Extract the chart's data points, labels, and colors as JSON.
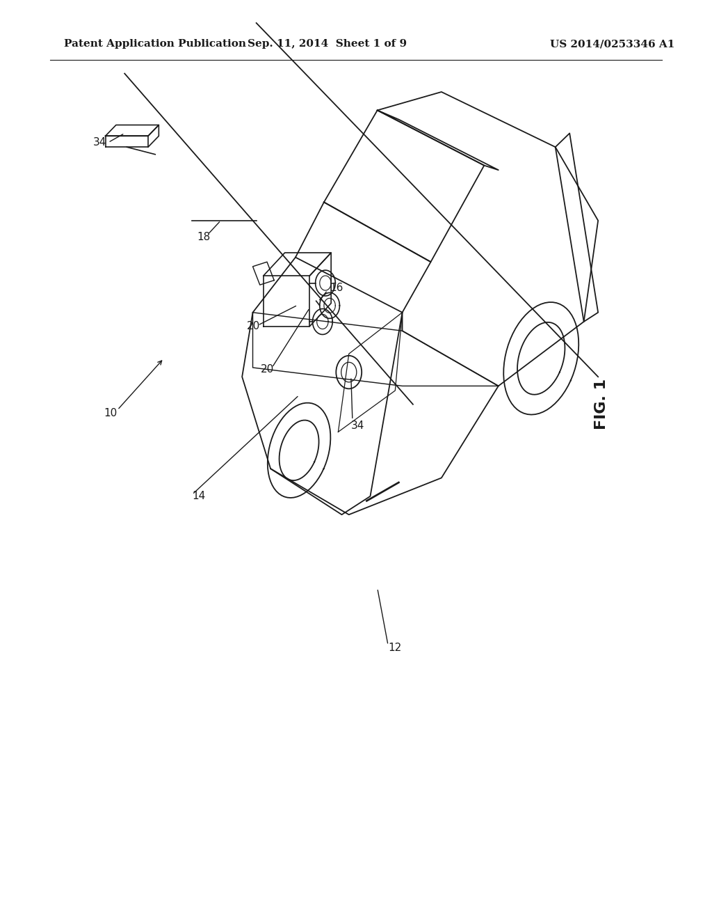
{
  "header_left": "Patent Application Publication",
  "header_center": "Sep. 11, 2014  Sheet 1 of 9",
  "header_right": "US 2014/0253346 A1",
  "fig_label": "FIG. 1",
  "bg_color": "#ffffff",
  "line_color": "#1a1a1a",
  "text_color": "#1a1a1a",
  "header_fontsize": 11,
  "label_fontsize": 11,
  "fig_label_fontsize": 16
}
